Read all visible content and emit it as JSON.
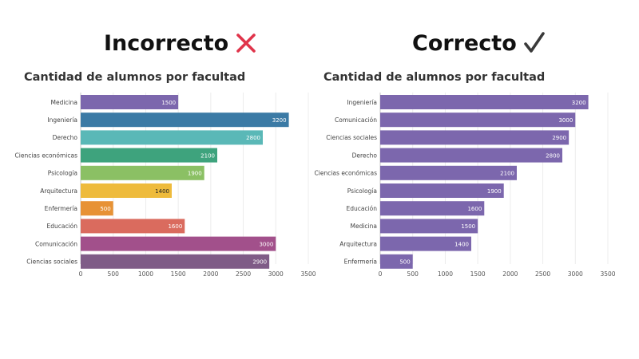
{
  "headings": {
    "wrong": {
      "text": "Incorrecto",
      "icon": "cross-mark-icon",
      "color": "#e0344a"
    },
    "right": {
      "text": "Correcto",
      "icon": "check-mark-icon",
      "color": "#3a3a3a"
    }
  },
  "chart_data": [
    {
      "id": "incorrect",
      "type": "bar",
      "orientation": "horizontal",
      "title": "Cantidad de alumnos por facultad",
      "xlabel": "",
      "ylabel": "",
      "categories": [
        "Medicina",
        "Ingeniería",
        "Derecho",
        "Ciencias económicas",
        "Psicología",
        "Arquitectura",
        "Enfermería",
        "Educación",
        "Comunicación",
        "Ciencias sociales"
      ],
      "values": [
        1500,
        3200,
        2800,
        2100,
        1900,
        1400,
        500,
        1600,
        3000,
        2900
      ],
      "colors": [
        "#7c67ad",
        "#3b7aa5",
        "#5ab8b7",
        "#3ea37d",
        "#8bc064",
        "#eebb3c",
        "#e79235",
        "#da6b5e",
        "#a2508b",
        "#7f5c87"
      ],
      "label_colors": [
        "#ffffff",
        "#ffffff",
        "#ffffff",
        "#ffffff",
        "#ffffff",
        "#222222",
        "#ffffff",
        "#ffffff",
        "#ffffff",
        "#ffffff"
      ],
      "xlim": [
        0,
        3500
      ],
      "xticks": [
        0,
        500,
        1000,
        1500,
        2000,
        2500,
        3000,
        3500
      ],
      "grid": true,
      "data_labels": true
    },
    {
      "id": "correct",
      "type": "bar",
      "orientation": "horizontal",
      "title": "Cantidad de alumnos por facultad",
      "xlabel": "",
      "ylabel": "",
      "categories": [
        "Ingeniería",
        "Comunicación",
        "Ciencias sociales",
        "Derecho",
        "Ciencias económicas",
        "Psicología",
        "Educación",
        "Medicina",
        "Arquitectura",
        "Enfermería"
      ],
      "values": [
        3200,
        3000,
        2900,
        2800,
        2100,
        1900,
        1600,
        1500,
        1400,
        500
      ],
      "colors": [
        "#7c67ad",
        "#7c67ad",
        "#7c67ad",
        "#7c67ad",
        "#7c67ad",
        "#7c67ad",
        "#7c67ad",
        "#7c67ad",
        "#7c67ad",
        "#7c67ad"
      ],
      "label_colors": [
        "#ffffff",
        "#ffffff",
        "#ffffff",
        "#ffffff",
        "#ffffff",
        "#ffffff",
        "#ffffff",
        "#ffffff",
        "#ffffff",
        "#ffffff"
      ],
      "xlim": [
        0,
        3500
      ],
      "xticks": [
        0,
        500,
        1000,
        1500,
        2000,
        2500,
        3000,
        3500
      ],
      "grid": true,
      "data_labels": true
    }
  ]
}
